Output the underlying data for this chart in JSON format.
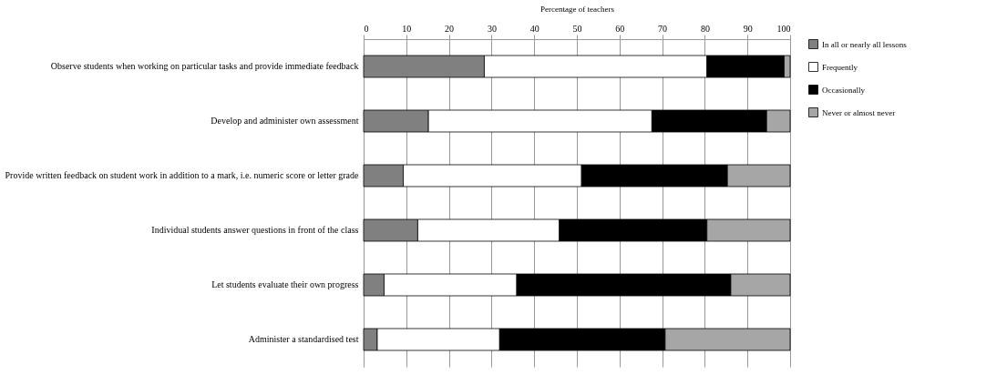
{
  "chart_data": {
    "type": "bar",
    "orientation": "horizontal",
    "stacked": true,
    "xlabel": "Percentage of teachers",
    "categories": [
      "Observe students when working on particular tasks and provide immediate feedback",
      "Develop and administer own assessment",
      "Provide written feedback on student work in addition to a mark, i.e. numeric score or letter grade",
      "Individual students answer questions in front of the class",
      "Let students evaluate their own progress",
      "Administer a standardised test"
    ],
    "series": [
      {
        "name": "In all or nearly all lessons",
        "color": "#808080",
        "values": [
          28.3,
          15.2,
          9.3,
          12.7,
          4.8,
          3.2
        ]
      },
      {
        "name": "Frequently",
        "color": "#ffffff",
        "values": [
          52.2,
          52.4,
          41.8,
          33.2,
          31.1,
          28.7
        ]
      },
      {
        "name": "Occasionally",
        "color": "#000000",
        "values": [
          18.1,
          26.9,
          34.2,
          34.6,
          50.2,
          38.8
        ]
      },
      {
        "name": "Never or almost never",
        "color": "#a6a6a6",
        "values": [
          1.4,
          5.5,
          14.7,
          19.5,
          13.9,
          29.3
        ]
      }
    ],
    "xlim": [
      0,
      100
    ],
    "xticks": [
      0,
      10,
      20,
      30,
      40,
      50,
      60,
      70,
      80,
      90,
      100
    ],
    "grid": "x",
    "legend": "right"
  }
}
